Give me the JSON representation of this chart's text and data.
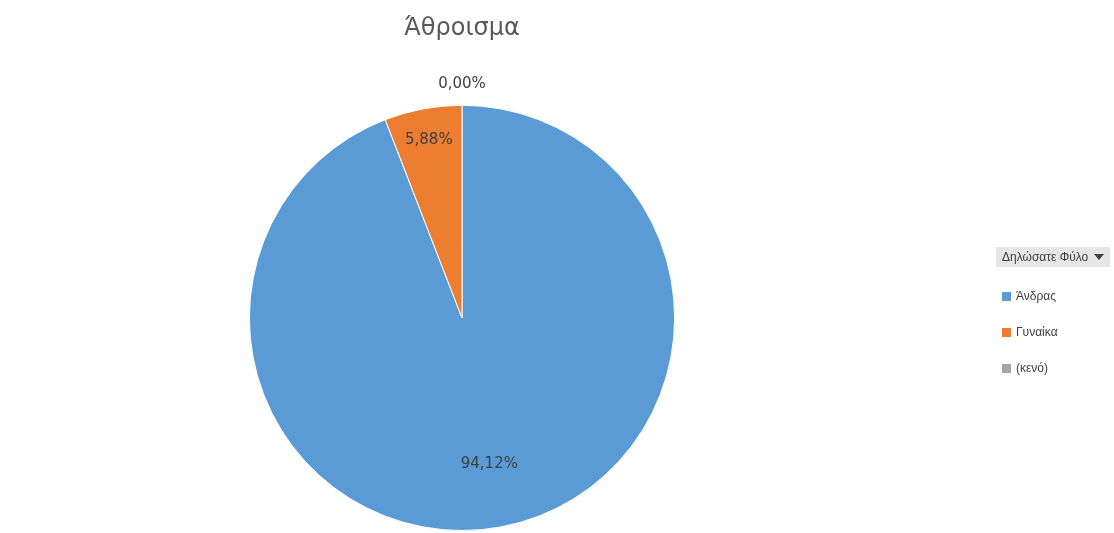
{
  "chart_data": {
    "type": "pie",
    "title": "Άθροισμα",
    "legend_title": "Δηλώσατε Φύλο",
    "legend": "right",
    "categories": [
      "Άνδρας",
      "Γυναίκα",
      "(κενό)"
    ],
    "values": [
      94.12,
      5.88,
      0
    ],
    "colors": [
      "#5b9bd5",
      "#ed7d31",
      "#a5a5a5"
    ],
    "value_labels": [
      "94,12%",
      "5,88%",
      "0,00%"
    ]
  }
}
